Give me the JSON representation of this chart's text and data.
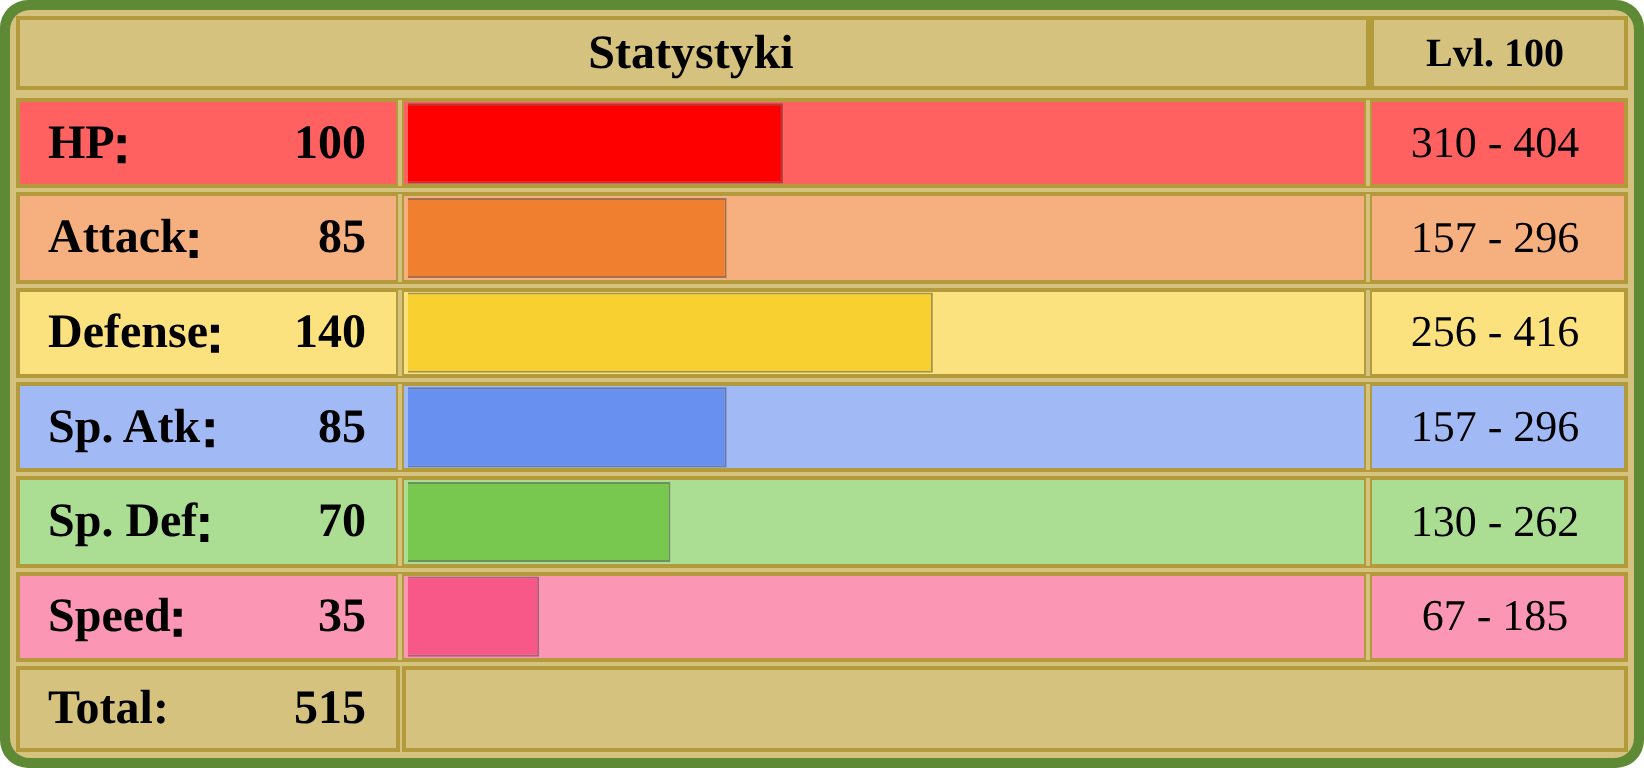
{
  "chart_data": {
    "type": "bar",
    "orientation": "horizontal",
    "title": "Statystyki",
    "categories": [
      "HP",
      "Attack",
      "Defense",
      "Sp. Atk",
      "Sp. Def",
      "Speed"
    ],
    "values": [
      100,
      85,
      140,
      85,
      70,
      35
    ],
    "colors": [
      "#ff0000",
      "#f08030",
      "#f8d030",
      "#6890f0",
      "#78c850",
      "#f85888"
    ],
    "xlim": [
      0,
      255
    ],
    "data_labels": true,
    "tick_labels": false,
    "legend": false,
    "annotations": [
      "Lvl. 100",
      "Total:",
      "515",
      "310 - 404",
      "157 - 296",
      "256 - 416",
      "157 - 296",
      "130 - 262",
      "67 - 185"
    ]
  }
}
